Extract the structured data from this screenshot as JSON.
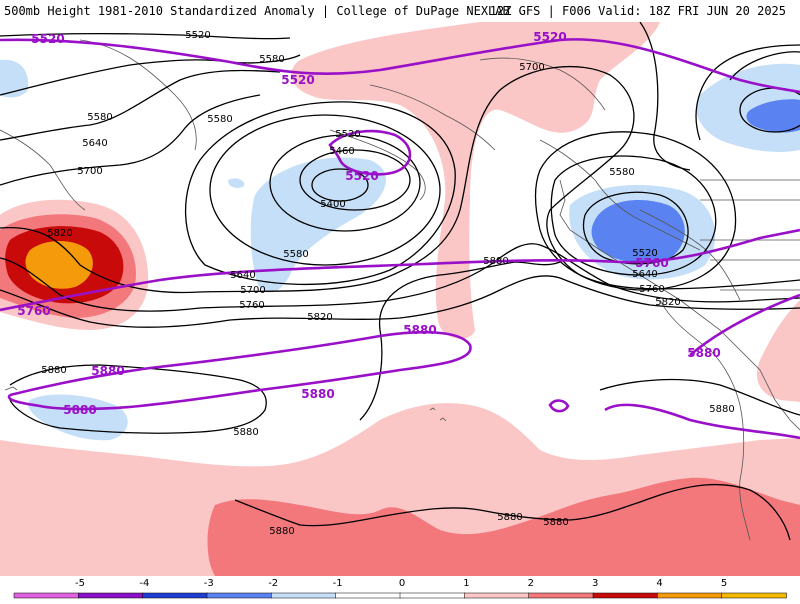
{
  "header": {
    "title_left": "500mb Height 1981-2010 Standardized Anomaly | College of DuPage NEXLAB",
    "title_right": "12Z GFS | F006 Valid: 18Z FRI JUN 20 2025"
  },
  "colors": {
    "pos_1": "#fbc6c6",
    "pos_2": "#f3787c",
    "pos_3": "#c80a0a",
    "pos_4": "#f59a0a",
    "neg_1": "#c6dff8",
    "neg_2": "#5a82f0",
    "neg_3": "#1e3ed2",
    "height_contour": "#000000",
    "climo_contour": "#9a10c8"
  },
  "contour_labels": [
    "5520",
    "5580",
    "5640",
    "5700",
    "5760",
    "5820",
    "5880",
    "5460",
    "5400",
    "5520",
    "5580",
    "5580",
    "5640",
    "5700",
    "5760",
    "5820",
    "5880",
    "5880",
    "5880",
    "5520",
    "5580",
    "5640",
    "5700",
    "5760",
    "5820",
    "5880",
    "5880",
    "5700",
    "5580",
    "5520",
    "5640",
    "5760"
  ],
  "climo_labels": [
    "5520",
    "5520",
    "5520",
    "5520",
    "5760",
    "5760",
    "5880",
    "5880",
    "5880",
    "5880",
    "5880"
  ],
  "colorbar": {
    "ticks": [
      "-5",
      "-4",
      "-3",
      "-2",
      "-1",
      "0",
      "1",
      "2",
      "3",
      "4",
      "5"
    ],
    "colors": [
      "#e060e0",
      "#8c10c8",
      "#1e3ed2",
      "#5a82f0",
      "#c6dff8",
      "#ffffff",
      "#ffffff",
      "#fbc6c6",
      "#f3787c",
      "#c80a0a",
      "#f59a0a",
      "#f5b800"
    ]
  }
}
